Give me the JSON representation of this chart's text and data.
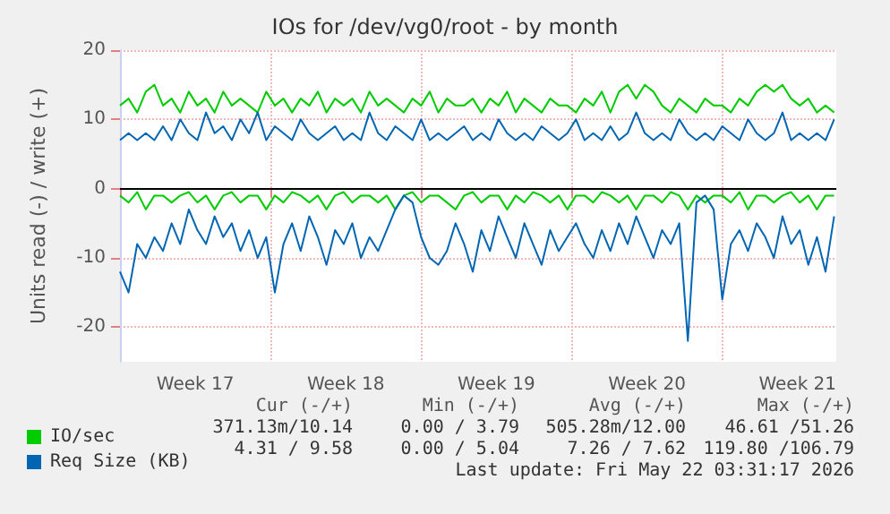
{
  "chart_data": {
    "type": "line",
    "title": "IOs for /dev/vg0/root - by month",
    "ylabel": "Units read (-) / write (+)",
    "x": [
      "2026-04-20T00:00",
      "2026-04-20T09:36",
      "2026-04-20T19:12",
      "2026-04-21T04:48",
      "2026-04-21T14:24",
      "2026-04-22T00:00",
      "2026-04-22T09:36",
      "2026-04-22T19:12",
      "2026-04-23T04:48",
      "2026-04-23T14:24",
      "2026-04-24T00:00",
      "2026-04-24T09:36",
      "2026-04-24T19:12",
      "2026-04-25T04:48",
      "2026-04-25T14:24",
      "2026-04-26T00:00",
      "2026-04-26T09:36",
      "2026-04-26T19:12",
      "2026-04-27T04:48",
      "2026-04-27T14:24",
      "2026-04-28T00:00",
      "2026-04-28T09:36",
      "2026-04-28T19:12",
      "2026-04-29T04:48",
      "2026-04-29T14:24",
      "2026-04-30T00:00",
      "2026-04-30T09:36",
      "2026-04-30T19:12",
      "2026-05-01T04:48",
      "2026-05-01T14:24",
      "2026-05-02T00:00",
      "2026-05-02T09:36",
      "2026-05-02T19:12",
      "2026-05-03T04:48",
      "2026-05-03T14:24",
      "2026-05-04T00:00",
      "2026-05-04T09:36",
      "2026-05-04T19:12",
      "2026-05-05T04:48",
      "2026-05-05T14:24",
      "2026-05-06T00:00",
      "2026-05-06T09:36",
      "2026-05-06T19:12",
      "2026-05-07T04:48",
      "2026-05-07T14:24",
      "2026-05-08T00:00",
      "2026-05-08T09:36",
      "2026-05-08T19:12",
      "2026-05-09T04:48",
      "2026-05-09T14:24",
      "2026-05-10T00:00",
      "2026-05-10T09:36",
      "2026-05-10T19:12",
      "2026-05-11T04:48",
      "2026-05-11T14:24",
      "2026-05-12T00:00",
      "2026-05-12T09:36",
      "2026-05-12T19:12",
      "2026-05-13T04:48",
      "2026-05-13T14:24",
      "2026-05-14T00:00",
      "2026-05-14T09:36",
      "2026-05-14T19:12",
      "2026-05-15T04:48",
      "2026-05-15T14:24",
      "2026-05-16T00:00",
      "2026-05-16T09:36",
      "2026-05-16T19:12",
      "2026-05-17T04:48",
      "2026-05-17T14:24",
      "2026-05-18T00:00",
      "2026-05-18T09:36",
      "2026-05-18T19:12",
      "2026-05-19T04:48",
      "2026-05-19T14:24",
      "2026-05-20T00:00",
      "2026-05-20T09:36",
      "2026-05-20T19:12",
      "2026-05-21T04:48",
      "2026-05-21T14:24",
      "2026-05-22T00:00",
      "2026-05-22T09:36",
      "2026-05-22T19:12",
      "2026-05-23T04:48"
    ],
    "series": [
      {
        "name": "IO/sec",
        "color": "#00cc00",
        "values": [
          12,
          13,
          11,
          14,
          15,
          12,
          13,
          11,
          14,
          12,
          13,
          11,
          14,
          12,
          13,
          12,
          11,
          14,
          12,
          13,
          11,
          13,
          12,
          14,
          11,
          13,
          12,
          13,
          11,
          14,
          12,
          13,
          12,
          11,
          13,
          12,
          14,
          11,
          13,
          12,
          12,
          13,
          11,
          13,
          12,
          14,
          11,
          13,
          12,
          11,
          13,
          12,
          12,
          11,
          13,
          12,
          14,
          11,
          14,
          15,
          13,
          15,
          14,
          12,
          11,
          13,
          12,
          11,
          13,
          12,
          12,
          11,
          13,
          12,
          14,
          15,
          14,
          15,
          13,
          12,
          13,
          11,
          12,
          11
        ]
      },
      {
        "color": "#00cc00",
        "values": [
          -1,
          -2,
          -0.5,
          -3,
          -1,
          -1,
          -2,
          -1,
          -0.5,
          -2,
          -1,
          -3,
          -1,
          -0.5,
          -2,
          -1,
          -1,
          -3,
          -1,
          -2,
          -0.5,
          -1,
          -2,
          -1,
          -3,
          -1,
          -0.5,
          -2,
          -1,
          -1,
          -2,
          -1,
          -3,
          -1,
          -0.5,
          -2,
          -1,
          -1,
          -2,
          -3,
          -1,
          -0.5,
          -2,
          -1,
          -1,
          -3,
          -1,
          -2,
          -0.5,
          -1,
          -2,
          -1,
          -3,
          -1,
          -1,
          -2,
          -0.5,
          -1,
          -2,
          -1,
          -3,
          -1,
          -1,
          -2,
          -0.5,
          -1,
          -3,
          -1,
          -2,
          -1,
          -1,
          -2,
          -0.5,
          -3,
          -1,
          -1,
          -2,
          -1,
          -0.5,
          -2,
          -1,
          -3,
          -1,
          -1
        ]
      },
      {
        "name": "Req Size (KB)",
        "color": "#0066b3",
        "values": [
          7,
          8,
          7,
          8,
          7,
          9,
          7,
          10,
          8,
          7,
          11,
          8,
          9,
          7,
          10,
          8,
          11,
          7,
          9,
          8,
          7,
          10,
          8,
          7,
          8,
          9,
          7,
          8,
          7,
          11,
          8,
          7,
          9,
          8,
          7,
          10,
          7,
          8,
          7,
          8,
          9,
          7,
          8,
          7,
          10,
          8,
          7,
          8,
          7,
          9,
          8,
          7,
          8,
          10,
          7,
          8,
          7,
          9,
          7,
          8,
          11,
          8,
          7,
          8,
          7,
          10,
          8,
          7,
          8,
          7,
          9,
          8,
          7,
          10,
          8,
          7,
          8,
          11,
          7,
          8,
          7,
          8,
          7,
          10
        ]
      },
      {
        "color": "#0066b3",
        "values": [
          -12,
          -15,
          -8,
          -10,
          -7,
          -9,
          -5,
          -8,
          -3,
          -6,
          -8,
          -4,
          -7,
          -5,
          -9,
          -6,
          -10,
          -7,
          -15,
          -8,
          -5,
          -9,
          -4,
          -7,
          -11,
          -6,
          -8,
          -5,
          -10,
          -7,
          -9,
          -6,
          -3,
          -1,
          -2,
          -7,
          -10,
          -11,
          -9,
          -5,
          -8,
          -12,
          -6,
          -9,
          -4,
          -7,
          -10,
          -5,
          -8,
          -11,
          -6,
          -9,
          -7,
          -5,
          -8,
          -10,
          -6,
          -9,
          -5,
          -8,
          -4,
          -7,
          -10,
          -6,
          -8,
          -5,
          -22,
          -2,
          -1,
          -3,
          -16,
          -8,
          -6,
          -9,
          -5,
          -7,
          -10,
          -4,
          -8,
          -6,
          -11,
          -7,
          -12,
          -4
        ]
      }
    ],
    "xlim": [
      "2026-04-20",
      "2026-05-23T07:12"
    ],
    "xticks": [
      {
        "value": "2026-04-20",
        "label": null
      },
      {
        "value": "2026-04-23T12:00",
        "label": "Week 17"
      },
      {
        "value": "2026-04-27",
        "label": null
      },
      {
        "value": "2026-04-30T12:00",
        "label": "Week 18"
      },
      {
        "value": "2026-05-04",
        "label": null
      },
      {
        "value": "2026-05-07T12:00",
        "label": "Week 19"
      },
      {
        "value": "2026-05-11",
        "label": null
      },
      {
        "value": "2026-05-14T12:00",
        "label": "Week 20"
      },
      {
        "value": "2026-05-18",
        "label": null
      },
      {
        "value": "2026-05-21T12:00",
        "label": "Week 21"
      }
    ],
    "ylim": [
      -25,
      20
    ],
    "yticks": [
      -20,
      -10,
      0,
      10,
      20
    ],
    "ref_lines": [
      {
        "axis": "y",
        "value": 0,
        "color": "#000000"
      }
    ],
    "grid": true,
    "legend": "bottom left",
    "marker": "none",
    "line_style": "solid",
    "annotations": [
      "Cur (-/+)",
      "Min (-/+)",
      "Avg (-/+)",
      "Max (-/+)",
      "371.13m/10.14",
      "0.00 / 3.79",
      "505.28m/12.00",
      "46.61 /51.26",
      "4.31 / 9.58",
      "0.00 / 5.04",
      "7.26 / 7.62",
      "119.80 /106.79",
      "Last update: Fri May 22 03:31:17 2026"
    ]
  }
}
